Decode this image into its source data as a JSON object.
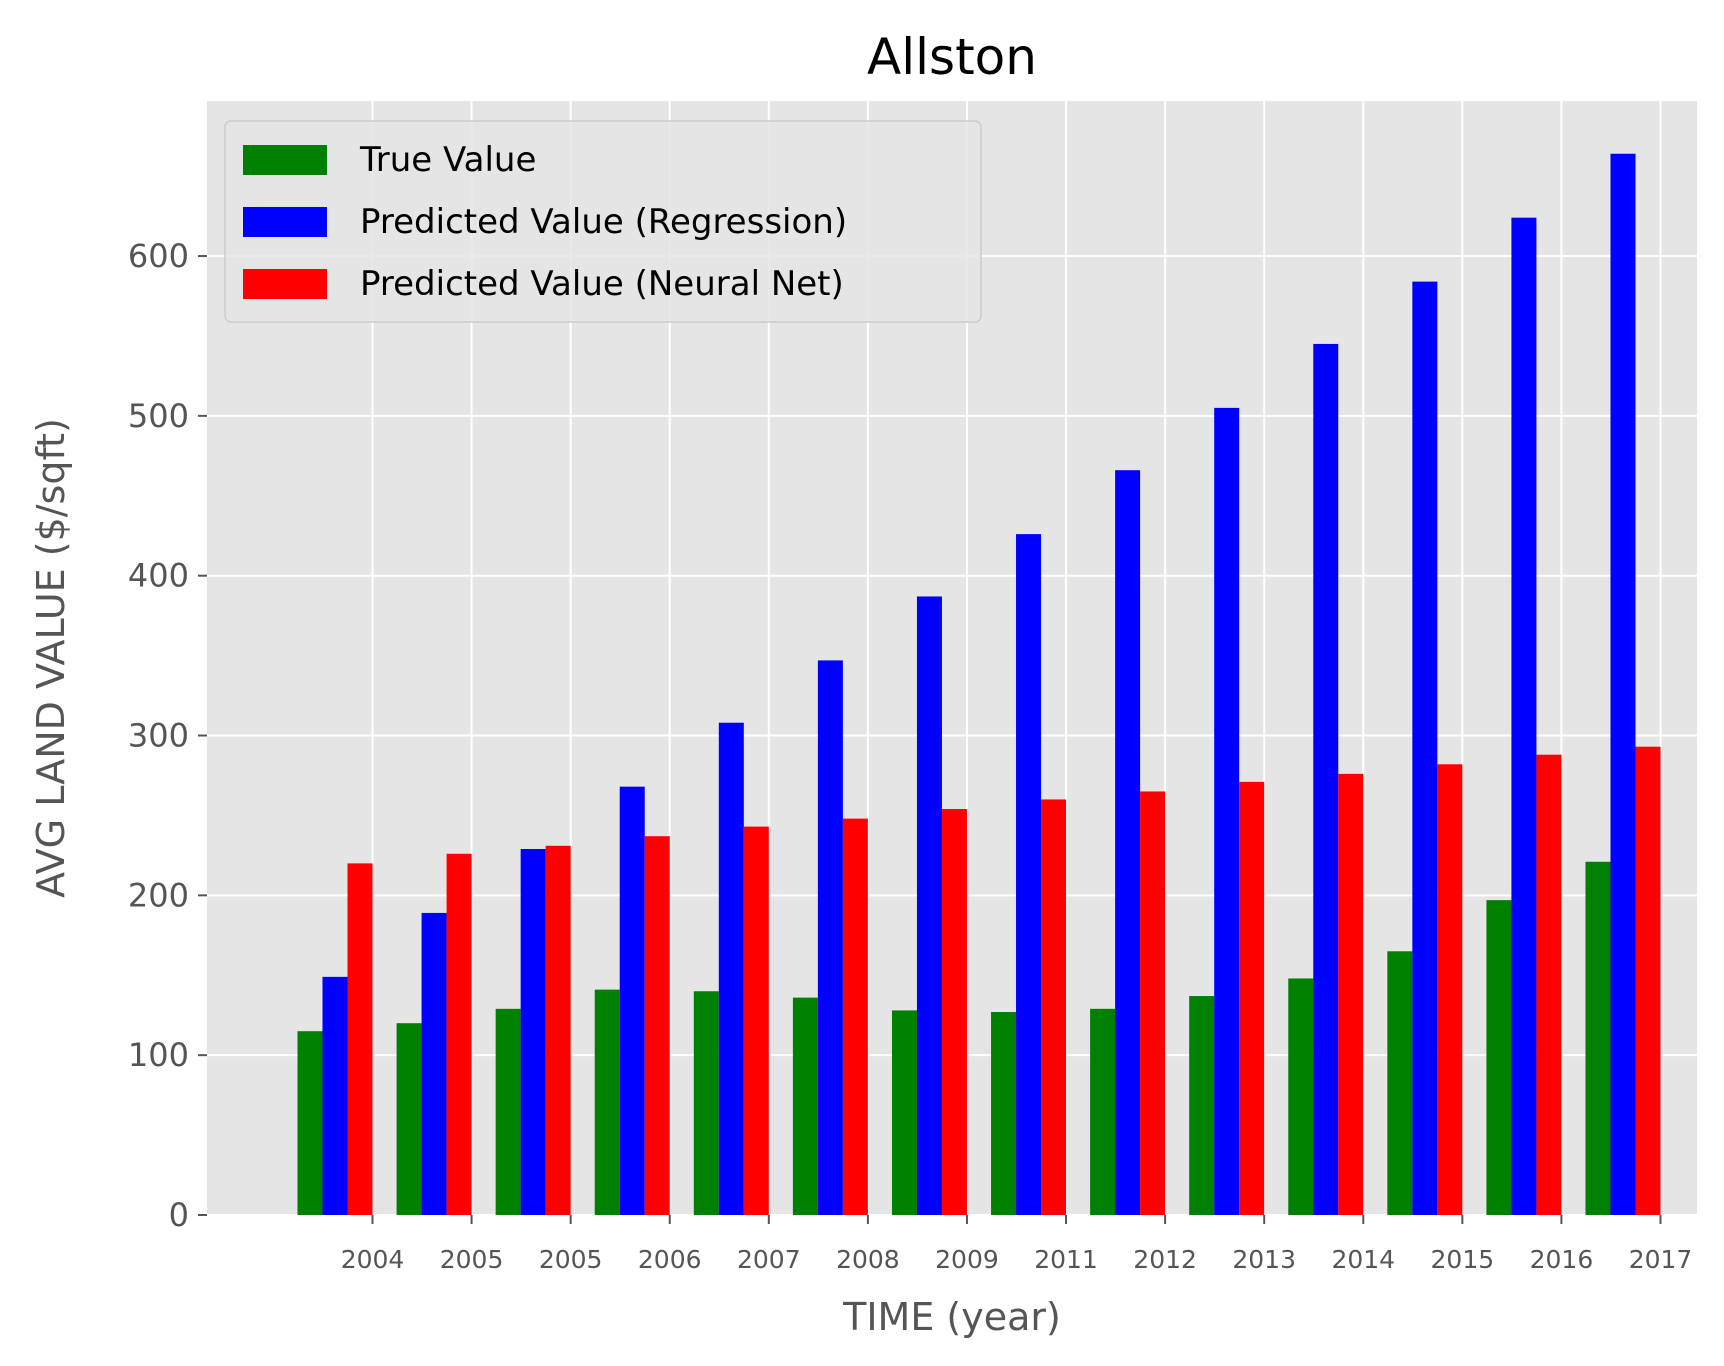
{
  "chart_data": {
    "type": "bar",
    "title": "Allston",
    "xlabel": "TIME (year)",
    "ylabel": "AVG LAND VALUE ($/sqft)",
    "categories": [
      "2004",
      "2005",
      "2005",
      "2006",
      "2007",
      "2008",
      "2009",
      "2011",
      "2012",
      "2013",
      "2014",
      "2015",
      "2016",
      "2017"
    ],
    "series": [
      {
        "name": "True Value",
        "color": "#008000",
        "values": [
          115,
          120,
          129,
          141,
          140,
          136,
          128,
          127,
          129,
          137,
          148,
          165,
          197,
          221
        ]
      },
      {
        "name": "Predicted Value (Regression)",
        "color": "#0000ff",
        "values": [
          149,
          189,
          229,
          268,
          308,
          347,
          387,
          426,
          466,
          505,
          545,
          584,
          624,
          664
        ]
      },
      {
        "name": "Predicted Value (Neural Net)",
        "color": "#ff0000",
        "values": [
          220,
          226,
          231,
          237,
          243,
          248,
          254,
          260,
          265,
          271,
          276,
          282,
          288,
          293
        ]
      }
    ],
    "yticks": [
      "0",
      "100",
      "200",
      "300",
      "400",
      "500",
      "600"
    ],
    "ylim": [
      0,
      697
    ],
    "grid": true,
    "legend_position": "upper-left",
    "plot_background": "#e5e5e5"
  }
}
